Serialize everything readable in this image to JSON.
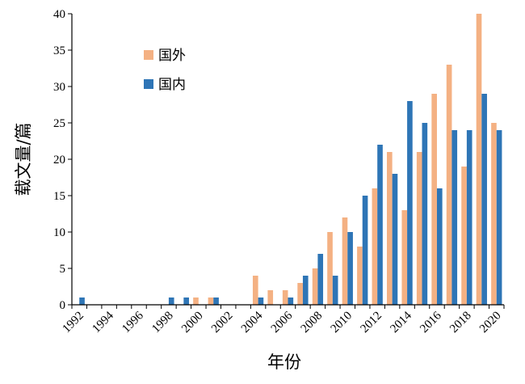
{
  "chart_data": {
    "type": "bar",
    "xlabel": "年份",
    "ylabel": "载文量/篇",
    "ylim": [
      0,
      40
    ],
    "yticks": [
      0,
      5,
      10,
      15,
      20,
      25,
      30,
      35,
      40
    ],
    "categories": [
      "1992",
      "1993",
      "1994",
      "1995",
      "1996",
      "1997",
      "1998",
      "1999",
      "2000",
      "2001",
      "2002",
      "2003",
      "2004",
      "2005",
      "2006",
      "2007",
      "2008",
      "2009",
      "2010",
      "2011",
      "2012",
      "2013",
      "2014",
      "2015",
      "2016",
      "2017",
      "2018",
      "2019",
      "2020"
    ],
    "xtick_labels": [
      "1992",
      "1994",
      "1996",
      "1998",
      "2000",
      "2002",
      "2004",
      "2006",
      "2008",
      "2010",
      "2012",
      "2014",
      "2016",
      "2018",
      "2020"
    ],
    "legend_position": "upper-left",
    "series": [
      {
        "name": "国外",
        "color": "#F4B183",
        "values": [
          0,
          0,
          0,
          0,
          0,
          0,
          0,
          0,
          1,
          1,
          0,
          0,
          4,
          2,
          2,
          3,
          5,
          10,
          12,
          8,
          16,
          21,
          13,
          21,
          29,
          33,
          19,
          40,
          25
        ]
      },
      {
        "name": "国内",
        "color": "#2E75B6",
        "values": [
          1,
          0,
          0,
          0,
          0,
          0,
          1,
          1,
          0,
          1,
          0,
          0,
          1,
          0,
          1,
          4,
          7,
          4,
          10,
          15,
          22,
          18,
          28,
          25,
          16,
          24,
          24,
          29,
          24
        ]
      }
    ]
  }
}
